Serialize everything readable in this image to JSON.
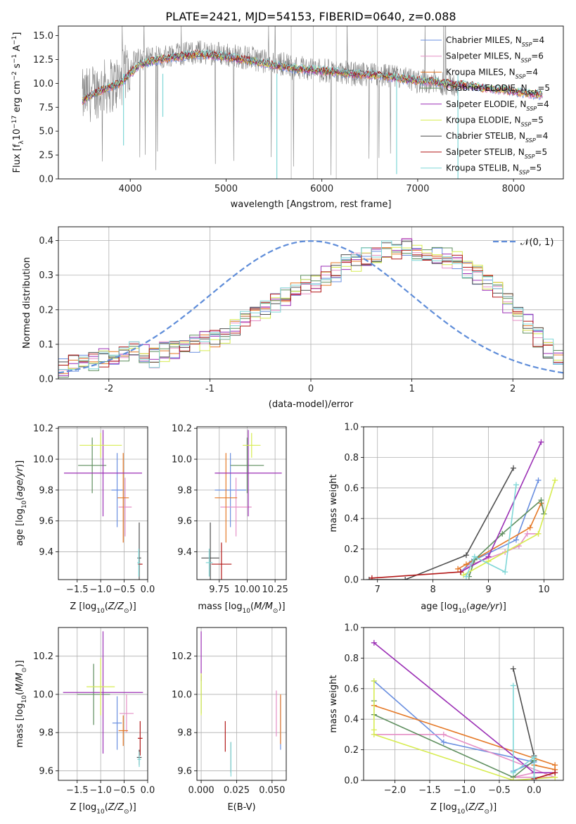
{
  "figure": {
    "title": "PLATE=2421, MJD=54153, FIBERID=0640, z=0.088"
  },
  "colors": {
    "chabrier_miles": "#6a8fe0",
    "salpeter_miles": "#e58fc6",
    "kroupa_miles": "#e57826",
    "chabrier_elodie": "#5f8f5f",
    "salpeter_elodie": "#9b2fb5",
    "kroupa_elodie": "#d7ec50",
    "chabrier_stelib": "#4f4f4f",
    "salpeter_stelib": "#b21818",
    "kroupa_stelib": "#7fd7d7",
    "data_spectrum": "#808080",
    "normal_curve": "#5f8dd9"
  },
  "legend": {
    "spectrum": [
      {
        "key": "chabrier_miles",
        "label": "Chabrier MILES, N",
        "sub": "SSP",
        "tail": "=4"
      },
      {
        "key": "salpeter_miles",
        "label": "Salpeter MILES, N",
        "sub": "SSP",
        "tail": "=6"
      },
      {
        "key": "kroupa_miles",
        "label": "Kroupa MILES, N",
        "sub": "SSP",
        "tail": "=4"
      },
      {
        "key": "chabrier_elodie",
        "label": "Chabrier ELODIE, N",
        "sub": "SSP",
        "tail": "=5"
      },
      {
        "key": "salpeter_elodie",
        "label": "Salpeter ELODIE, N",
        "sub": "SSP",
        "tail": "=4"
      },
      {
        "key": "kroupa_elodie",
        "label": "Kroupa ELODIE, N",
        "sub": "SSP",
        "tail": "=5"
      },
      {
        "key": "chabrier_stelib",
        "label": "Chabrier STELIB, N",
        "sub": "SSP",
        "tail": "=4"
      },
      {
        "key": "salpeter_stelib",
        "label": "Salpeter STELIB, N",
        "sub": "SSP",
        "tail": "=5"
      },
      {
        "key": "kroupa_stelib",
        "label": "Kroupa STELIB, N",
        "sub": "SSP",
        "tail": "=5"
      }
    ],
    "normal": "𝒩(0, 1)"
  },
  "chart_data": [
    {
      "id": "spectrum",
      "type": "line",
      "title": "PLATE=2421, MJD=54153, FIBERID=0640, z=0.088",
      "xlabel": "wavelength [Angstrom, rest frame]",
      "ylabel": "Flux [f_λ 10^-17 erg cm^-2 s^-1 A^-1]",
      "xlim": [
        3250,
        8520
      ],
      "ylim": [
        0,
        16
      ],
      "xticks": [
        4000,
        5000,
        6000,
        7000,
        8000
      ],
      "yticks": [
        0.0,
        2.5,
        5.0,
        7.5,
        10.0,
        12.5,
        15.0
      ],
      "grid": false,
      "legend_position": "top-right",
      "data_series": {
        "name": "",
        "x": [
          3500,
          3600,
          3700,
          3800,
          3900,
          4000,
          4100,
          4200,
          4300,
          4400,
          4500,
          4600,
          4700,
          4800,
          4900,
          5000,
          5100,
          5200,
          5300,
          5400,
          5500,
          5600,
          5700,
          5800,
          5900,
          6000,
          6100,
          6200,
          6300,
          6400,
          6500,
          6600,
          6700,
          6800,
          6900,
          7000,
          7100,
          7200,
          7300,
          7400,
          7500
        ],
        "y": [
          8.5,
          9.0,
          9.5,
          9.8,
          10.2,
          12.0,
          12.5,
          12.8,
          12.6,
          13.0,
          13.2,
          13.1,
          13.3,
          13.2,
          13.2,
          13.0,
          12.9,
          12.7,
          12.6,
          12.3,
          12.0,
          12.1,
          11.6,
          11.7,
          11.5,
          11.3,
          11.3,
          11.2,
          11.0,
          11.0,
          10.9,
          10.8,
          10.7,
          10.6,
          10.4,
          10.2,
          10.3,
          10.1,
          10.0,
          9.8,
          9.6
        ]
      },
      "model_series": {
        "x": [
          3500,
          3700,
          3900,
          4100,
          4300,
          4500,
          4700,
          4900,
          5100,
          5300,
          5500,
          5700,
          5900,
          6100,
          6300,
          6500,
          6700,
          6900,
          7100,
          7300,
          7500,
          7700,
          7900,
          8100,
          8300
        ],
        "y": [
          8.2,
          9.3,
          10.0,
          12.0,
          12.5,
          12.8,
          13.0,
          12.9,
          12.6,
          12.3,
          11.9,
          11.6,
          11.4,
          11.2,
          11.0,
          10.9,
          10.7,
          10.4,
          10.2,
          10.0,
          9.8,
          9.5,
          9.3,
          9.0,
          8.8
        ]
      }
    },
    {
      "id": "residuals",
      "type": "line",
      "xlabel": "(data-model)/error",
      "ylabel": "Normed distribution",
      "xlim": [
        -2.5,
        2.5
      ],
      "ylim": [
        0,
        0.44
      ],
      "xticks": [
        -2,
        -1,
        0,
        1,
        2
      ],
      "yticks": [
        0.0,
        0.1,
        0.2,
        0.3,
        0.4
      ],
      "grid": true,
      "legend_position": "top-right",
      "normal_curve": {
        "mean": 0,
        "sigma": 1
      },
      "bins": {
        "start": -2.5,
        "width": 0.1,
        "count": 50
      },
      "histogram_envelope": [
        0.03,
        0.04,
        0.05,
        0.05,
        0.06,
        0.06,
        0.07,
        0.08,
        0.07,
        0.06,
        0.08,
        0.08,
        0.09,
        0.1,
        0.11,
        0.12,
        0.13,
        0.15,
        0.17,
        0.19,
        0.2,
        0.22,
        0.24,
        0.25,
        0.27,
        0.28,
        0.3,
        0.31,
        0.33,
        0.34,
        0.35,
        0.36,
        0.37,
        0.37,
        0.38,
        0.37,
        0.36,
        0.36,
        0.35,
        0.34,
        0.32,
        0.3,
        0.27,
        0.25,
        0.22,
        0.19,
        0.16,
        0.12,
        0.09,
        0.06
      ]
    },
    {
      "id": "Z-age",
      "type": "scatter",
      "xlabel": "Z [log10(Z/Z⊙)]",
      "ylabel": "age  [log10(age/yr)]",
      "xlim": [
        -1.9,
        0.0
      ],
      "ylim": [
        9.22,
        10.21
      ],
      "xticks": [
        -1.5,
        -1.0,
        -0.5,
        0.0
      ],
      "ytick_labels": [
        "9.4",
        "9.6",
        "9.8",
        "10.0",
        "10.2"
      ],
      "xtick_labels": [
        "−1.5",
        "−1.0",
        "−0.5",
        "0.0"
      ],
      "grid": true,
      "points": [
        {
          "key": "chabrier_miles",
          "x": -0.65,
          "y": 9.8,
          "xerr": 0.12,
          "yerr": 0.24
        },
        {
          "key": "salpeter_miles",
          "x": -0.48,
          "y": 9.69,
          "xerr": 0.14,
          "yerr": 0.19
        },
        {
          "key": "kroupa_miles",
          "x": -0.52,
          "y": 9.75,
          "xerr": 0.12,
          "yerr": 0.29
        },
        {
          "key": "chabrier_elodie",
          "x": -1.18,
          "y": 9.96,
          "xerr": 0.3,
          "yerr": 0.18
        },
        {
          "key": "salpeter_elodie",
          "x": -0.95,
          "y": 9.91,
          "xerr": 0.83,
          "yerr": 0.28
        },
        {
          "key": "kroupa_elodie",
          "x": -1.0,
          "y": 10.09,
          "xerr": 0.45,
          "yerr": 0.08
        },
        {
          "key": "chabrier_stelib",
          "x": -0.18,
          "y": 9.36,
          "xerr": 0.04,
          "yerr": 0.23
        },
        {
          "key": "salpeter_stelib",
          "x": -0.16,
          "y": 9.32,
          "xerr": 0.05,
          "yerr": 0.0
        },
        {
          "key": "kroupa_stelib",
          "x": -0.19,
          "y": 9.33,
          "xerr": 0.03,
          "yerr": 0.09
        }
      ]
    },
    {
      "id": "mass-age",
      "type": "scatter",
      "xlabel": "mass [log10(M/M⊙)]",
      "ylabel": "",
      "xlim": [
        9.55,
        10.35
      ],
      "ylim": [
        9.22,
        10.21
      ],
      "xticks": [
        9.75,
        10.0,
        10.25
      ],
      "xtick_labels": [
        "9.75",
        "10.00",
        "10.25"
      ],
      "ytick_labels": [
        "9.4",
        "9.6",
        "9.8",
        "10.0",
        "10.2"
      ],
      "grid": true,
      "points": [
        {
          "key": "chabrier_miles",
          "x": 9.85,
          "y": 9.8,
          "xerr": 0.14,
          "yerr": 0.24
        },
        {
          "key": "salpeter_miles",
          "x": 9.9,
          "y": 9.69,
          "xerr": 0.14,
          "yerr": 0.19
        },
        {
          "key": "kroupa_miles",
          "x": 9.81,
          "y": 9.75,
          "xerr": 0.1,
          "yerr": 0.29
        },
        {
          "key": "chabrier_elodie",
          "x": 10.0,
          "y": 9.96,
          "xerr": 0.15,
          "yerr": 0.18
        },
        {
          "key": "salpeter_elodie",
          "x": 10.01,
          "y": 9.91,
          "xerr": 0.3,
          "yerr": 0.28
        },
        {
          "key": "kroupa_elodie",
          "x": 10.04,
          "y": 10.09,
          "xerr": 0.08,
          "yerr": 0.08
        },
        {
          "key": "chabrier_stelib",
          "x": 9.67,
          "y": 9.36,
          "xerr": 0.08,
          "yerr": 0.23
        },
        {
          "key": "salpeter_stelib",
          "x": 9.77,
          "y": 9.32,
          "xerr": 0.09,
          "yerr": 0.14
        },
        {
          "key": "kroupa_stelib",
          "x": 9.66,
          "y": 9.33,
          "xerr": 0.03,
          "yerr": 0.09
        }
      ]
    },
    {
      "id": "age-weight",
      "type": "line",
      "xlabel": "age  [log10(age/yr)]",
      "ylabel": "mass weight",
      "xlim": [
        6.75,
        10.35
      ],
      "ylim": [
        0,
        1.0
      ],
      "xticks": [
        7,
        8,
        9,
        10
      ],
      "yticks": [
        0.0,
        0.2,
        0.4,
        0.6,
        0.8,
        1.0
      ],
      "grid": true,
      "series": [
        {
          "key": "chabrier_miles",
          "x": [
            8.5,
            8.7,
            9.5,
            9.9
          ],
          "y": [
            0.05,
            0.12,
            0.26,
            0.65
          ]
        },
        {
          "key": "salpeter_miles",
          "x": [
            8.5,
            8.7,
            9.3,
            9.55,
            9.7,
            9.9
          ],
          "y": [
            0.05,
            0.1,
            0.18,
            0.22,
            0.3,
            0.3
          ]
        },
        {
          "key": "kroupa_miles",
          "x": [
            8.45,
            8.6,
            9.75,
            9.95
          ],
          "y": [
            0.07,
            0.1,
            0.34,
            0.5
          ]
        },
        {
          "key": "chabrier_elodie",
          "x": [
            8.65,
            8.75,
            9.25,
            9.95,
            10.0
          ],
          "y": [
            0.02,
            0.13,
            0.3,
            0.52,
            0.43
          ]
        },
        {
          "key": "salpeter_elodie",
          "x": [
            8.5,
            9.0,
            9.95
          ],
          "y": [
            0.05,
            0.15,
            0.9
          ]
        },
        {
          "key": "kroupa_elodie",
          "x": [
            8.55,
            9.0,
            9.9,
            10.2
          ],
          "y": [
            0.03,
            0.12,
            0.3,
            0.65
          ]
        },
        {
          "key": "chabrier_stelib",
          "x": [
            6.85,
            7.5,
            8.6,
            9.45
          ],
          "y": [
            0.0,
            0.0,
            0.16,
            0.73
          ]
        },
        {
          "key": "salpeter_stelib",
          "x": [
            6.9,
            8.5
          ],
          "y": [
            0.01,
            0.05
          ]
        },
        {
          "key": "kroupa_stelib",
          "x": [
            8.6,
            8.75,
            9.3,
            9.5
          ],
          "y": [
            0.02,
            0.15,
            0.05,
            0.62
          ]
        }
      ]
    },
    {
      "id": "Z-mass",
      "type": "scatter",
      "xlabel": "Z [log10(Z/Z⊙)]",
      "ylabel": "mass [log10(M/M⊙)]",
      "xlim": [
        -1.9,
        0.0
      ],
      "ylim": [
        9.55,
        10.35
      ],
      "xticks": [
        -1.5,
        -1.0,
        -0.5,
        0.0
      ],
      "xtick_labels": [
        "−1.5",
        "−1.0",
        "−0.5",
        "0.0"
      ],
      "ytick_labels": [
        "9.6",
        "9.8",
        "10.0",
        "10.2"
      ],
      "grid": true,
      "points": [
        {
          "key": "chabrier_miles",
          "x": -0.65,
          "y": 9.85,
          "xerr": 0.1,
          "yerr": 0.14
        },
        {
          "key": "salpeter_miles",
          "x": -0.45,
          "y": 9.9,
          "xerr": 0.15,
          "yerr": 0.1
        },
        {
          "key": "kroupa_miles",
          "x": -0.52,
          "y": 9.81,
          "xerr": 0.1,
          "yerr": 0.08
        },
        {
          "key": "chabrier_elodie",
          "x": -1.15,
          "y": 10.0,
          "xerr": 0.35,
          "yerr": 0.16
        },
        {
          "key": "salpeter_elodie",
          "x": -0.95,
          "y": 10.01,
          "xerr": 0.85,
          "yerr": 0.32
        },
        {
          "key": "kroupa_elodie",
          "x": -1.0,
          "y": 10.04,
          "xerr": 0.3,
          "yerr": 0.15
        },
        {
          "key": "chabrier_stelib",
          "x": -0.18,
          "y": 9.67,
          "xerr": 0.05,
          "yerr": 0.04
        },
        {
          "key": "salpeter_stelib",
          "x": -0.16,
          "y": 9.77,
          "xerr": 0.05,
          "yerr": 0.09
        },
        {
          "key": "kroupa_stelib",
          "x": -0.18,
          "y": 9.66,
          "xerr": 0.04,
          "yerr": 0.04
        }
      ]
    },
    {
      "id": "ebv-mass",
      "type": "scatter",
      "xlabel": "E(B-V)",
      "ylabel": "",
      "xlim": [
        -0.003,
        0.06
      ],
      "ylim": [
        9.55,
        10.35
      ],
      "xticks": [
        0.0,
        0.025,
        0.05
      ],
      "xtick_labels": [
        "0.000",
        "0.025",
        "0.050"
      ],
      "ytick_labels": [
        "9.6",
        "9.8",
        "10.0",
        "10.2"
      ],
      "grid": true,
      "points": [
        {
          "key": "chabrier_miles",
          "x": 0.056,
          "y": 9.85,
          "xerr": 0.0,
          "yerr": 0.14
        },
        {
          "key": "salpeter_miles",
          "x": 0.053,
          "y": 9.9,
          "xerr": 0.0,
          "yerr": 0.12
        },
        {
          "key": "kroupa_miles",
          "x": 0.056,
          "y": 9.87,
          "xerr": 0.0,
          "yerr": 0.13
        },
        {
          "key": "chabrier_elodie",
          "x": 0.0,
          "y": 10.0,
          "xerr": 0.0,
          "yerr": 0.1
        },
        {
          "key": "salpeter_elodie",
          "x": 0.0,
          "y": 10.2,
          "xerr": 0.0,
          "yerr": 0.13
        },
        {
          "key": "kroupa_elodie",
          "x": 0.0,
          "y": 10.0,
          "xerr": 0.0,
          "yerr": 0.11
        },
        {
          "key": "chabrier_stelib",
          "x": 0.021,
          "y": 9.67,
          "xerr": 0.0,
          "yerr": 0.08
        },
        {
          "key": "salpeter_stelib",
          "x": 0.017,
          "y": 9.78,
          "xerr": 0.0,
          "yerr": 0.08
        },
        {
          "key": "kroupa_stelib",
          "x": 0.021,
          "y": 9.66,
          "xerr": 0.0,
          "yerr": 0.09
        }
      ]
    },
    {
      "id": "Z-weight",
      "type": "line",
      "xlabel": "Z [log10(Z/Z⊙)]",
      "ylabel": "mass weight",
      "xlim": [
        -2.45,
        0.42
      ],
      "ylim": [
        0,
        1.0
      ],
      "xticks": [
        -2.0,
        -1.5,
        -1.0,
        -0.5,
        0.0
      ],
      "xtick_labels": [
        "−2.0",
        "−1.5",
        "−1.0",
        "−0.5",
        "0.0"
      ],
      "yticks": [
        0.0,
        0.2,
        0.4,
        0.6,
        0.8,
        1.0
      ],
      "grid": true,
      "series": [
        {
          "key": "chabrier_miles",
          "x": [
            -2.3,
            -1.3,
            0.0,
            -0.3
          ],
          "y": [
            0.65,
            0.25,
            0.12,
            0.06
          ]
        },
        {
          "key": "salpeter_miles",
          "x": [
            -2.3,
            -1.3,
            0.3,
            -0.3,
            0.0
          ],
          "y": [
            0.3,
            0.3,
            0.02,
            0.02,
            0.05
          ]
        },
        {
          "key": "kroupa_miles",
          "x": [
            -2.3,
            0.3,
            0.3,
            0.0
          ],
          "y": [
            0.49,
            0.1,
            0.07,
            0.1
          ]
        },
        {
          "key": "chabrier_elodie",
          "x": [
            -2.3,
            -2.3,
            -0.3,
            0.0,
            0.0
          ],
          "y": [
            0.52,
            0.43,
            0.02,
            0.13,
            0.13
          ]
        },
        {
          "key": "salpeter_elodie",
          "x": [
            -2.3,
            0.0,
            0.3
          ],
          "y": [
            0.9,
            0.05,
            0.05
          ]
        },
        {
          "key": "kroupa_elodie",
          "x": [
            -2.3,
            -2.3,
            -2.3,
            -0.3,
            0.3
          ],
          "y": [
            0.65,
            0.33,
            0.3,
            0.0,
            0.02
          ]
        },
        {
          "key": "chabrier_stelib",
          "x": [
            -0.3,
            0.0,
            0.0
          ],
          "y": [
            0.73,
            0.16,
            0.0
          ]
        },
        {
          "key": "salpeter_stelib",
          "x": [
            0.3,
            0.0
          ],
          "y": [
            0.05,
            0.01
          ]
        },
        {
          "key": "kroupa_stelib",
          "x": [
            -0.3,
            -0.3,
            0.0,
            0.0
          ],
          "y": [
            0.62,
            0.05,
            0.15,
            0.02
          ]
        }
      ]
    }
  ]
}
